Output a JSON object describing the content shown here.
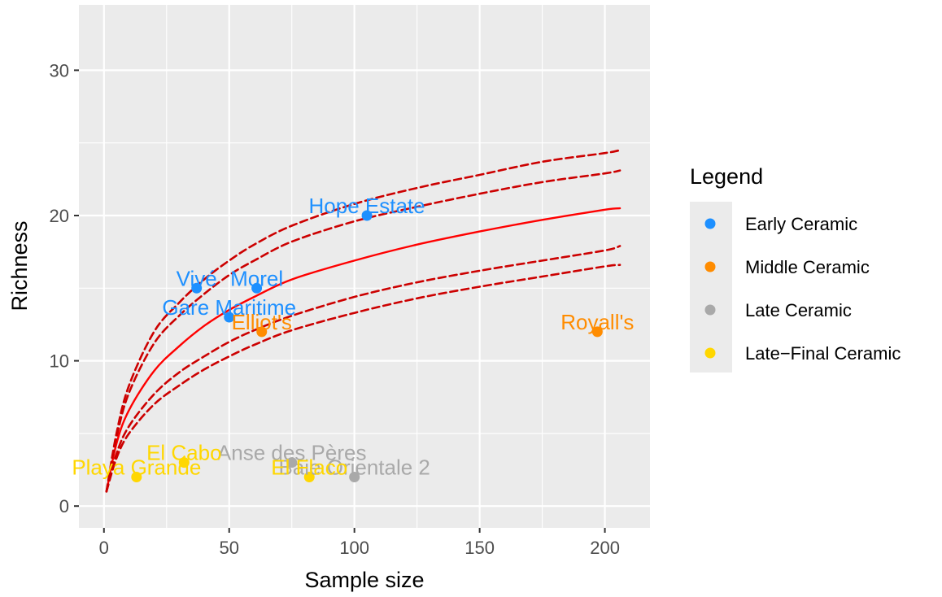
{
  "chart_data": {
    "type": "scatter",
    "xlabel": "Sample size",
    "ylabel": "Richness",
    "xlim": [
      -10,
      218
    ],
    "ylim": [
      -1.5,
      34.5
    ],
    "xticks": [
      0,
      50,
      100,
      150,
      200
    ],
    "yticks": [
      0,
      10,
      20,
      30
    ],
    "grid": true,
    "legend": {
      "title": "Legend",
      "position": "right",
      "entries": [
        {
          "label": "Early Ceramic",
          "color": "#1E90FF"
        },
        {
          "label": "Middle Ceramic",
          "color": "#FF8C00"
        },
        {
          "label": "Late Ceramic",
          "color": "#A9A9A9"
        },
        {
          "label": "Late−Final Ceramic",
          "color": "#FFD700"
        }
      ]
    },
    "points": [
      {
        "label": "Hope Estate",
        "x": 105,
        "y": 20,
        "group": "Early Ceramic"
      },
      {
        "label": "Vivé",
        "x": 37,
        "y": 15,
        "group": "Early Ceramic"
      },
      {
        "label": "Morel",
        "x": 61,
        "y": 15,
        "group": "Early Ceramic"
      },
      {
        "label": "Gare Maritime",
        "x": 50,
        "y": 13,
        "group": "Early Ceramic"
      },
      {
        "label": "Elliot's",
        "x": 63,
        "y": 12,
        "group": "Middle Ceramic"
      },
      {
        "label": "Royall's",
        "x": 197,
        "y": 12,
        "group": "Middle Ceramic"
      },
      {
        "label": "Baie Orientale 2",
        "x": 100,
        "y": 2,
        "group": "Late Ceramic"
      },
      {
        "label": "Anse des Pères",
        "x": 75,
        "y": 3,
        "group": "Late Ceramic"
      },
      {
        "label": "El Cabo",
        "x": 32,
        "y": 3,
        "group": "Late−Final Ceramic"
      },
      {
        "label": "Playa Grande",
        "x": 13,
        "y": 2,
        "group": "Late−Final Ceramic"
      },
      {
        "label": "El Flaco",
        "x": 82,
        "y": 2,
        "group": "Late−Final Ceramic"
      }
    ],
    "rarefaction_curves": [
      {
        "style": "solid",
        "points": [
          [
            1,
            1
          ],
          [
            5,
            4.3
          ],
          [
            10,
            6.6
          ],
          [
            20,
            9.3
          ],
          [
            30,
            11
          ],
          [
            40,
            12.4
          ],
          [
            50,
            13.5
          ],
          [
            60,
            14.4
          ],
          [
            75,
            15.6
          ],
          [
            100,
            16.9
          ],
          [
            125,
            18
          ],
          [
            150,
            18.9
          ],
          [
            175,
            19.7
          ],
          [
            200,
            20.4
          ],
          [
            206,
            20.5
          ]
        ]
      },
      {
        "style": "dashed",
        "points": [
          [
            1,
            1
          ],
          [
            5,
            5
          ],
          [
            10,
            8.3
          ],
          [
            20,
            12
          ],
          [
            30,
            14
          ],
          [
            40,
            15.6
          ],
          [
            50,
            16.9
          ],
          [
            60,
            18
          ],
          [
            75,
            19.3
          ],
          [
            100,
            20.8
          ],
          [
            125,
            21.9
          ],
          [
            150,
            22.8
          ],
          [
            175,
            23.7
          ],
          [
            200,
            24.3
          ],
          [
            206,
            24.5
          ]
        ]
      },
      {
        "style": "dashed",
        "points": [
          [
            1,
            1
          ],
          [
            5,
            4.7
          ],
          [
            10,
            7.8
          ],
          [
            20,
            11.2
          ],
          [
            30,
            13.1
          ],
          [
            40,
            14.6
          ],
          [
            50,
            15.9
          ],
          [
            60,
            16.9
          ],
          [
            75,
            18.2
          ],
          [
            100,
            19.6
          ],
          [
            125,
            20.6
          ],
          [
            150,
            21.5
          ],
          [
            175,
            22.3
          ],
          [
            200,
            22.9
          ],
          [
            206,
            23.1
          ]
        ]
      },
      {
        "style": "dashed",
        "points": [
          [
            1,
            1
          ],
          [
            5,
            3.6
          ],
          [
            10,
            5.5
          ],
          [
            20,
            7.7
          ],
          [
            30,
            9.2
          ],
          [
            40,
            10.3
          ],
          [
            50,
            11.3
          ],
          [
            60,
            12.1
          ],
          [
            75,
            13.1
          ],
          [
            100,
            14.4
          ],
          [
            125,
            15.4
          ],
          [
            150,
            16.2
          ],
          [
            175,
            16.9
          ],
          [
            200,
            17.6
          ],
          [
            206,
            17.9
          ]
        ]
      },
      {
        "style": "dashed",
        "points": [
          [
            1,
            1
          ],
          [
            5,
            3.3
          ],
          [
            10,
            5
          ],
          [
            20,
            7
          ],
          [
            30,
            8.3
          ],
          [
            40,
            9.4
          ],
          [
            50,
            10.3
          ],
          [
            60,
            11.1
          ],
          [
            75,
            12.1
          ],
          [
            100,
            13.3
          ],
          [
            125,
            14.3
          ],
          [
            150,
            15.1
          ],
          [
            175,
            15.8
          ],
          [
            200,
            16.5
          ],
          [
            206,
            16.6
          ]
        ]
      }
    ],
    "curve_color": "#FF0000"
  }
}
